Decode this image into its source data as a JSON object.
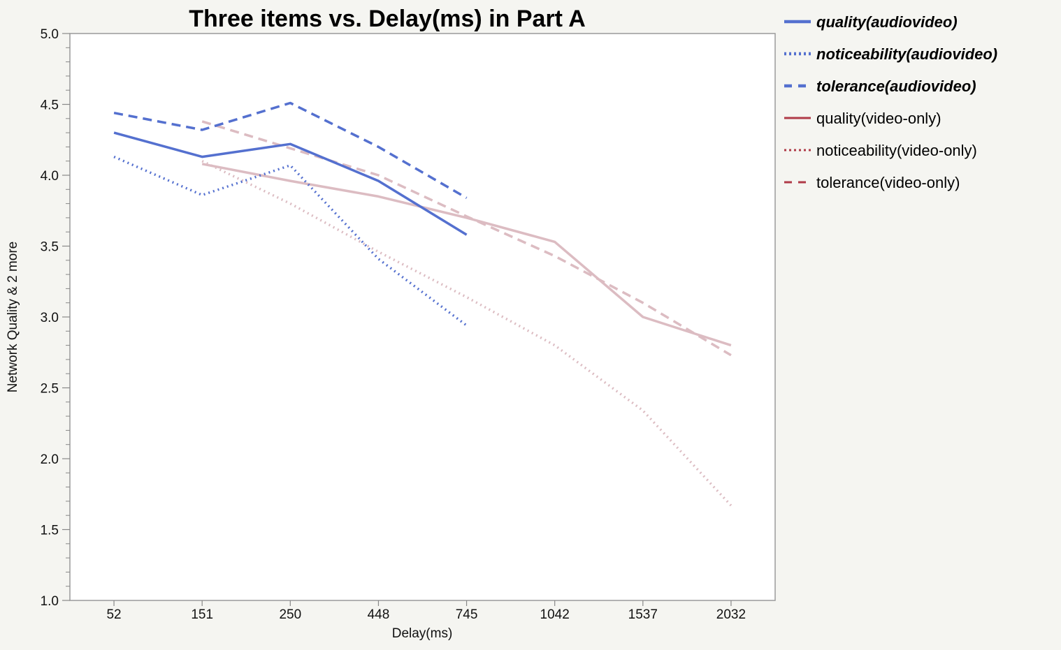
{
  "chart_data": {
    "type": "line",
    "title": "Three items vs. Delay(ms) in Part A",
    "xlabel": "Delay(ms)",
    "ylabel": "Network Quality & 2 more",
    "categories": [
      "52",
      "151",
      "250",
      "448",
      "745",
      "1042",
      "1537",
      "2032"
    ],
    "ylim": [
      1.0,
      5.0
    ],
    "yticks": [
      "1.0",
      "1.5",
      "2.0",
      "2.5",
      "3.0",
      "3.5",
      "4.0",
      "4.5",
      "5.0"
    ],
    "grid": false,
    "legend_position": "right",
    "series": [
      {
        "name": "quality(audiovideo)",
        "color": "#5470cf",
        "dash": "solid",
        "emphasis": true,
        "values": [
          4.3,
          4.13,
          4.22,
          3.96,
          3.58,
          null,
          null,
          null
        ]
      },
      {
        "name": "noticeability(audiovideo)",
        "color": "#5470cf",
        "dash": "dotted",
        "emphasis": true,
        "values": [
          4.13,
          3.86,
          4.07,
          3.41,
          2.94,
          null,
          null,
          null
        ]
      },
      {
        "name": "tolerance(audiovideo)",
        "color": "#5470cf",
        "dash": "dashed",
        "emphasis": true,
        "values": [
          4.44,
          4.32,
          4.51,
          4.2,
          3.84,
          null,
          null,
          null
        ]
      },
      {
        "name": "quality(video-only)",
        "color": "#b03a48",
        "line_color": "#dcbcc2",
        "dash": "solid",
        "emphasis": false,
        "values": [
          null,
          4.08,
          3.96,
          3.85,
          3.7,
          3.53,
          3.0,
          2.8
        ]
      },
      {
        "name": "noticeability(video-only)",
        "color": "#b03a48",
        "line_color": "#dcbcc2",
        "dash": "dotted",
        "emphasis": false,
        "values": [
          null,
          4.1,
          3.8,
          3.46,
          3.14,
          2.8,
          2.34,
          1.67
        ]
      },
      {
        "name": "tolerance(video-only)",
        "color": "#b03a48",
        "line_color": "#dcbcc2",
        "dash": "dashed",
        "emphasis": false,
        "values": [
          null,
          4.38,
          4.19,
          4.0,
          3.71,
          3.43,
          3.1,
          2.73
        ]
      }
    ]
  }
}
